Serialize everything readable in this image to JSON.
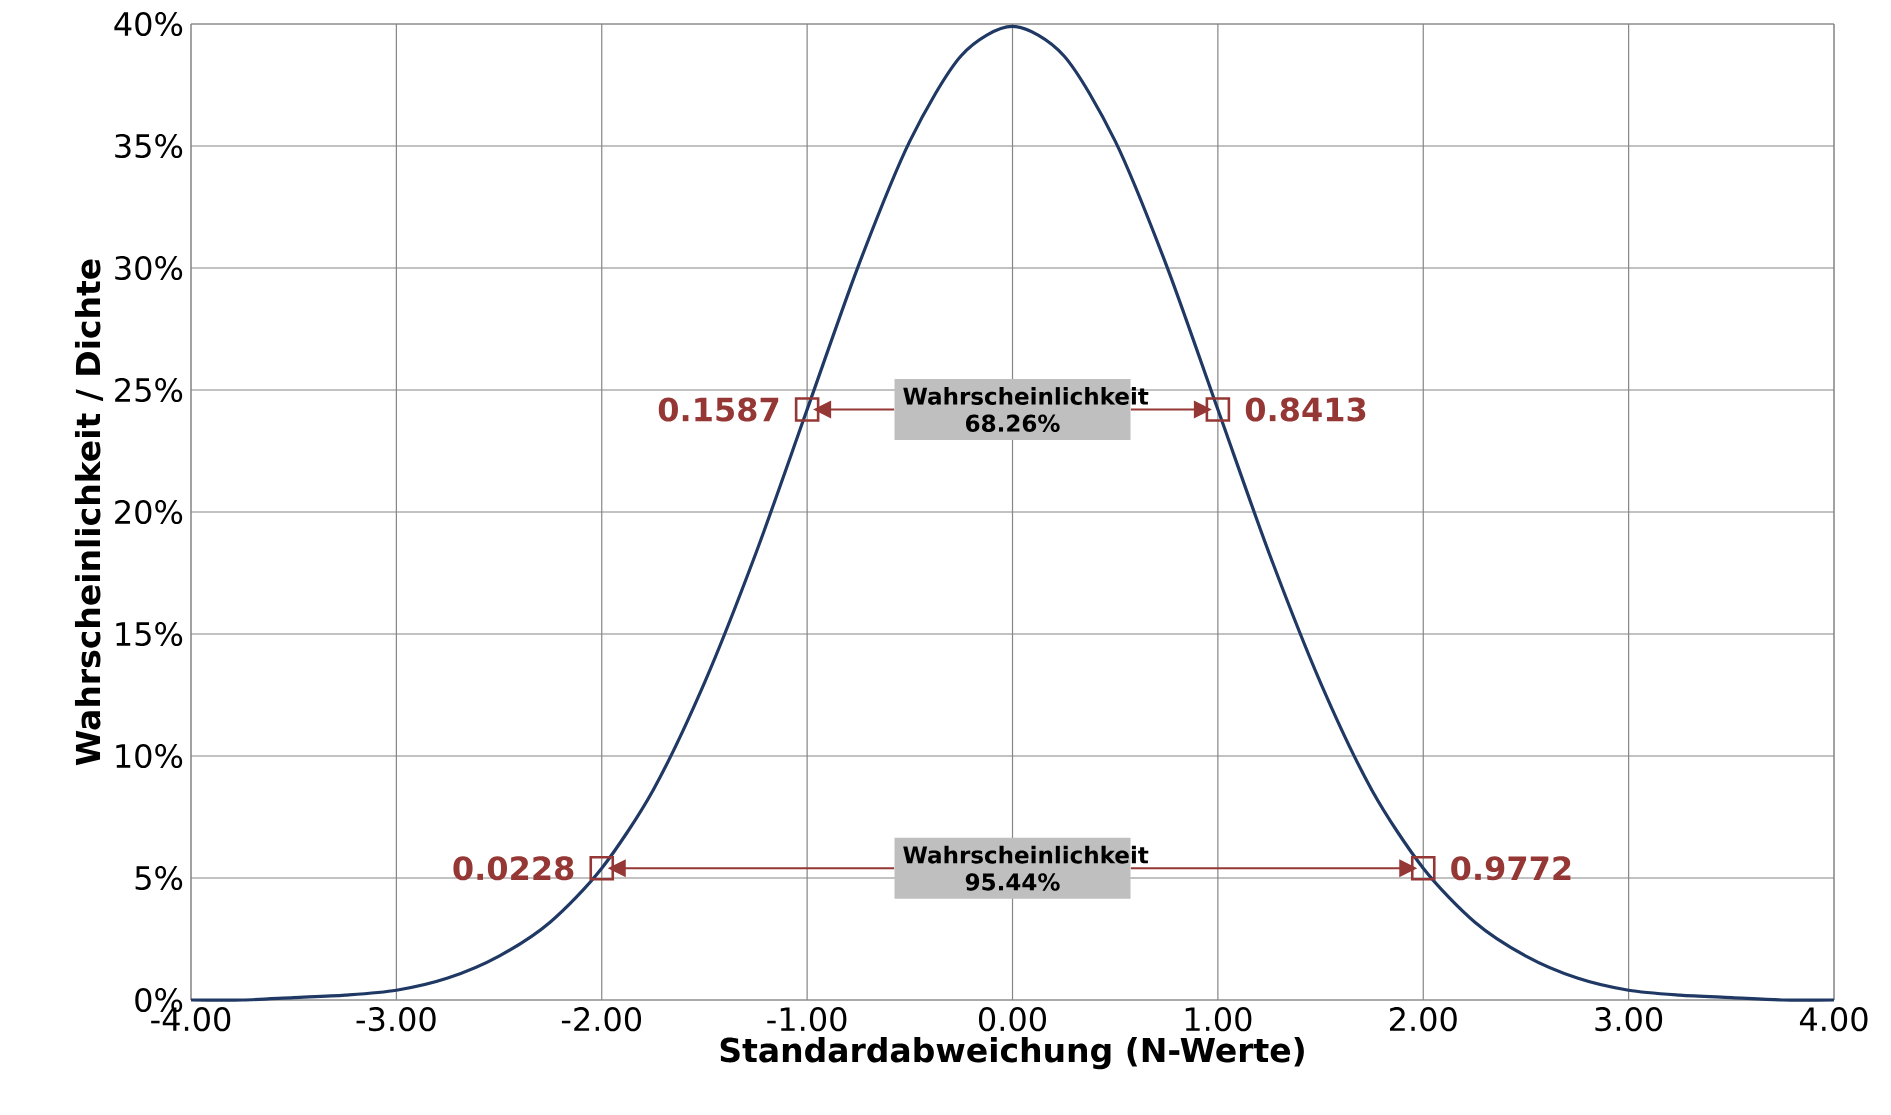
{
  "chart_data": {
    "type": "line",
    "xlabel": "Standardabweichung (N-Werte)",
    "ylabel": "Wahrscheinlichkeit / Dichte",
    "xlim": [
      -4,
      4
    ],
    "ylim": [
      0,
      40
    ],
    "xticks": [
      {
        "value": -4,
        "label": "-4.00"
      },
      {
        "value": -3,
        "label": "-3.00"
      },
      {
        "value": -2,
        "label": "-2.00"
      },
      {
        "value": -1,
        "label": "-1.00"
      },
      {
        "value": 0,
        "label": "0.00"
      },
      {
        "value": 1,
        "label": "1.00"
      },
      {
        "value": 2,
        "label": "2.00"
      },
      {
        "value": 3,
        "label": "3.00"
      },
      {
        "value": 4,
        "label": "4.00"
      }
    ],
    "yticks": [
      {
        "value": 0,
        "label": "0%"
      },
      {
        "value": 5,
        "label": "5%"
      },
      {
        "value": 10,
        "label": "10%"
      },
      {
        "value": 15,
        "label": "15%"
      },
      {
        "value": 20,
        "label": "20%"
      },
      {
        "value": 25,
        "label": "25%"
      },
      {
        "value": 30,
        "label": "30%"
      },
      {
        "value": 35,
        "label": "35%"
      },
      {
        "value": 40,
        "label": "40%"
      }
    ],
    "grid": true,
    "series": [
      {
        "color": "#1f3864",
        "x": [
          -4,
          -3.75,
          -3.5,
          -3.25,
          -3,
          -2.75,
          -2.5,
          -2.25,
          -2,
          -1.75,
          -1.5,
          -1.25,
          -1,
          -0.75,
          -0.5,
          -0.25,
          0,
          0.25,
          0.5,
          0.75,
          1,
          1.25,
          1.5,
          1.75,
          2,
          2.25,
          2.5,
          2.75,
          3,
          3.25,
          3.5,
          3.75,
          4
        ],
        "values": [
          0.0,
          0.0,
          0.1,
          0.2,
          0.4,
          0.9,
          1.8,
          3.2,
          5.4,
          8.6,
          13.0,
          18.3,
          24.2,
          30.1,
          35.2,
          38.7,
          39.9,
          38.7,
          35.2,
          30.1,
          24.2,
          18.3,
          13.0,
          8.6,
          5.4,
          3.2,
          1.8,
          0.9,
          0.4,
          0.2,
          0.1,
          0.0,
          0.0
        ]
      },
      {
        "type": "scatter",
        "color": "#953735",
        "marker": "square",
        "x": [
          -2,
          -1,
          1,
          2
        ],
        "values": [
          5.4,
          24.2,
          24.2,
          5.4
        ]
      }
    ],
    "annotations": [
      {
        "text": "0.1587",
        "x": -1,
        "y": 24.2
      },
      {
        "text": "0.8413",
        "x": 1,
        "y": 24.2
      },
      {
        "text": "0.0228",
        "x": -2,
        "y": 5.4
      },
      {
        "text": "0.9772",
        "x": 2,
        "y": 5.4
      },
      "Wahrscheinlichkeit 68.26%",
      "Wahrscheinlichkeit 95.44%"
    ]
  }
}
